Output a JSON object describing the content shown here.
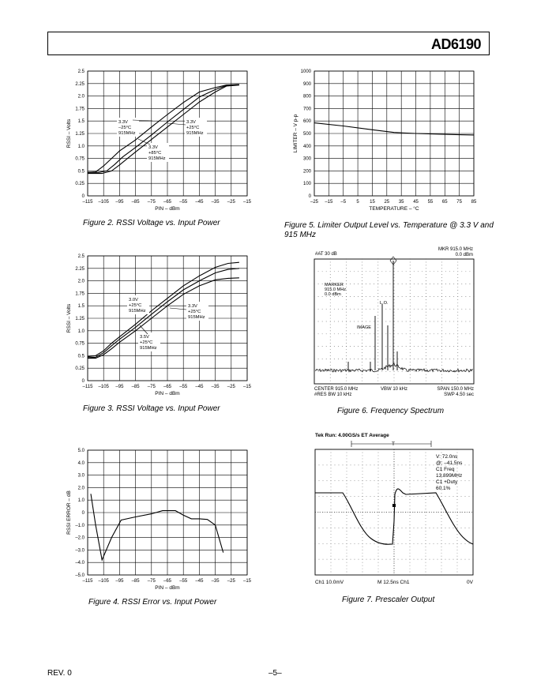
{
  "header": {
    "part_number": "AD6190"
  },
  "footer": {
    "revision": "REV. 0",
    "page": "–5–"
  },
  "fig2": {
    "caption": "Figure 2.  RSSI Voltage vs. Input Power",
    "chart_data": {
      "type": "line",
      "xlabel": "PIN – dBm",
      "ylabel": "RSSI – Volts",
      "xlim": [
        -115,
        -15
      ],
      "ylim": [
        0,
        2.5
      ],
      "x_ticks": [
        "–115",
        "–105",
        "–95",
        "–85",
        "–75",
        "–65",
        "–55",
        "–45",
        "–35",
        "–25",
        "–15"
      ],
      "y_ticks": [
        "0",
        "0.25",
        "0.5",
        "0.75",
        "1.0",
        "1.25",
        "1.5",
        "1.75",
        "2.0",
        "2.25",
        "2.5"
      ],
      "grid": true,
      "series": [
        {
          "points": [
            [
              -115,
              0.47
            ],
            [
              -110,
              0.48
            ],
            [
              -105,
              0.6
            ],
            [
              -100,
              0.75
            ],
            [
              -95,
              0.9
            ],
            [
              -85,
              1.12
            ],
            [
              -75,
              1.38
            ],
            [
              -65,
              1.63
            ],
            [
              -55,
              1.87
            ],
            [
              -45,
              2.08
            ],
            [
              -35,
              2.17
            ],
            [
              -28,
              2.22
            ],
            [
              -20,
              2.23
            ]
          ]
        },
        {
          "points": [
            [
              -115,
              0.47
            ],
            [
              -108,
              0.47
            ],
            [
              -103,
              0.5
            ],
            [
              -98,
              0.63
            ],
            [
              -93,
              0.78
            ],
            [
              -85,
              0.97
            ],
            [
              -75,
              1.22
            ],
            [
              -65,
              1.48
            ],
            [
              -55,
              1.73
            ],
            [
              -45,
              1.98
            ],
            [
              -35,
              2.13
            ],
            [
              -28,
              2.21
            ],
            [
              -20,
              2.23
            ]
          ]
        },
        {
          "points": [
            [
              -115,
              0.45
            ],
            [
              -106,
              0.45
            ],
            [
              -100,
              0.5
            ],
            [
              -95,
              0.62
            ],
            [
              -90,
              0.75
            ],
            [
              -85,
              0.88
            ],
            [
              -75,
              1.13
            ],
            [
              -65,
              1.38
            ],
            [
              -55,
              1.63
            ],
            [
              -45,
              1.88
            ],
            [
              -35,
              2.08
            ],
            [
              -28,
              2.2
            ],
            [
              -20,
              2.22
            ]
          ]
        }
      ],
      "annotations": [
        {
          "lines": [
            "3.3V",
            "–25°C",
            "915MHz"
          ]
        },
        {
          "lines": [
            "3.3V",
            "+25°C",
            "915MHz"
          ]
        },
        {
          "lines": [
            "3.3V",
            "+85°C",
            "915MHz"
          ]
        }
      ]
    }
  },
  "fig3": {
    "caption": "Figure 3.  RSSI Voltage vs. Input Power",
    "chart_data": {
      "type": "line",
      "xlabel": "PIN – dBm",
      "ylabel": "RSSI – Volts",
      "xlim": [
        -115,
        -15
      ],
      "ylim": [
        0,
        2.5
      ],
      "x_ticks": [
        "–115",
        "–105",
        "–95",
        "–85",
        "–75",
        "–65",
        "–55",
        "–45",
        "–35",
        "–25",
        "–15"
      ],
      "y_ticks": [
        "0",
        "0.25",
        "0.5",
        "0.75",
        "1.0",
        "1.25",
        "1.5",
        "1.75",
        "2.0",
        "2.25",
        "2.5"
      ],
      "grid": true,
      "series": [
        {
          "points": [
            [
              -115,
              0.48
            ],
            [
              -110,
              0.5
            ],
            [
              -105,
              0.6
            ],
            [
              -100,
              0.75
            ],
            [
              -95,
              0.88
            ],
            [
              -85,
              1.13
            ],
            [
              -75,
              1.4
            ],
            [
              -65,
              1.65
            ],
            [
              -55,
              1.9
            ],
            [
              -45,
              2.1
            ],
            [
              -35,
              2.27
            ],
            [
              -27,
              2.35
            ],
            [
              -20,
              2.37
            ]
          ]
        },
        {
          "points": [
            [
              -115,
              0.46
            ],
            [
              -110,
              0.47
            ],
            [
              -105,
              0.56
            ],
            [
              -100,
              0.7
            ],
            [
              -95,
              0.83
            ],
            [
              -85,
              1.07
            ],
            [
              -75,
              1.33
            ],
            [
              -65,
              1.58
            ],
            [
              -55,
              1.82
            ],
            [
              -45,
              2.0
            ],
            [
              -35,
              2.16
            ],
            [
              -27,
              2.23
            ],
            [
              -20,
              2.25
            ]
          ]
        },
        {
          "points": [
            [
              -115,
              0.45
            ],
            [
              -110,
              0.45
            ],
            [
              -105,
              0.52
            ],
            [
              -100,
              0.64
            ],
            [
              -95,
              0.77
            ],
            [
              -85,
              1.0
            ],
            [
              -75,
              1.25
            ],
            [
              -65,
              1.5
            ],
            [
              -55,
              1.73
            ],
            [
              -45,
              1.9
            ],
            [
              -35,
              2.02
            ],
            [
              -27,
              2.05
            ],
            [
              -20,
              2.06
            ]
          ]
        }
      ],
      "annotations": [
        {
          "lines": [
            "3.0V",
            "+25°C",
            "915MHz"
          ]
        },
        {
          "lines": [
            "3.3V",
            "+25°C",
            "915MHz"
          ]
        },
        {
          "lines": [
            "3.5V",
            "+25°C",
            "915MHz"
          ]
        }
      ]
    }
  },
  "fig4": {
    "caption": "Figure 4.  RSSI Error vs. Input Power",
    "chart_data": {
      "type": "line",
      "xlabel": "PIN – dBm",
      "ylabel": "RSSI ERROR – dB",
      "xlim": [
        -115,
        -15
      ],
      "ylim": [
        -5,
        5
      ],
      "x_ticks": [
        "–115",
        "–105",
        "–95",
        "–85",
        "–75",
        "–65",
        "–55",
        "–45",
        "–35",
        "–25",
        "–15"
      ],
      "y_ticks": [
        "–5.0",
        "–4.0",
        "–3.0",
        "–2.0",
        "–1.0",
        "0",
        "1.0",
        "2.0",
        "3.0",
        "4.0",
        "5.0"
      ],
      "grid": true,
      "series": [
        {
          "points": [
            [
              -113,
              1.5
            ],
            [
              -110,
              -1.0
            ],
            [
              -106,
              -3.8
            ],
            [
              -100,
              -2.0
            ],
            [
              -94,
              -0.6
            ],
            [
              -85,
              -0.35
            ],
            [
              -75,
              -0.1
            ],
            [
              -68,
              0.15
            ],
            [
              -60,
              0.15
            ],
            [
              -55,
              -0.2
            ],
            [
              -50,
              -0.5
            ],
            [
              -45,
              -0.5
            ],
            [
              -40,
              -0.55
            ],
            [
              -35,
              -1.0
            ],
            [
              -30,
              -3.2
            ]
          ]
        }
      ]
    }
  },
  "fig5": {
    "caption": "Figure 5.  Limiter Output Level vs. Temperature @ 3.3 V and 915 MHz",
    "chart_data": {
      "type": "line",
      "xlabel": "TEMPERATURE – °C",
      "ylabel": "LIMITER – V p-p",
      "xlim": [
        -25,
        85
      ],
      "ylim": [
        0,
        1000
      ],
      "x_ticks": [
        "–25",
        "–15",
        "–5",
        "5",
        "15",
        "25",
        "35",
        "45",
        "55",
        "65",
        "75",
        "85"
      ],
      "y_ticks": [
        "0",
        "100",
        "200",
        "300",
        "400",
        "500",
        "600",
        "700",
        "800",
        "900",
        "1000"
      ],
      "grid": true,
      "series": [
        {
          "points": [
            [
              -25,
              585
            ],
            [
              -5,
              560
            ],
            [
              15,
              530
            ],
            [
              30,
              508
            ],
            [
              45,
              500
            ],
            [
              60,
              495
            ],
            [
              75,
              490
            ],
            [
              85,
              488
            ]
          ]
        }
      ]
    }
  },
  "fig6": {
    "caption": "Figure 6.  Frequency Spectrum",
    "labels": {
      "atten": "#AT 30 dB",
      "mkr": "MKR 915.0 MHz",
      "mkr_level": "0.0 dBm",
      "marker": "MARKER",
      "marker_freq": "915.0 MHz",
      "marker_level": "0.0 dBm",
      "lo": "L.O.",
      "image": "IMAGE",
      "center": "CENTER 915.0 MHz",
      "res_bw": "#RES BW 10 kHz",
      "vbw": "VBW 10 kHz",
      "span": "SPAN 150.0 MHz",
      "swp": "SWP 4.50 sec"
    }
  },
  "fig7": {
    "caption": "Figure 7.  Prescaler Output",
    "labels": {
      "top": "Tek Run: 4.00GS/s ET Average",
      "trigger": "T",
      "meas": [
        "V: 72.0ns",
        "@: –41.5ns",
        "C1 Freq",
        "13.899MHz",
        "C1 +Duty",
        "60.1%"
      ],
      "ch1": "Ch1 10.0mV",
      "timebase": "M 12.5ns Ch1",
      "trig_level": "0V"
    }
  }
}
